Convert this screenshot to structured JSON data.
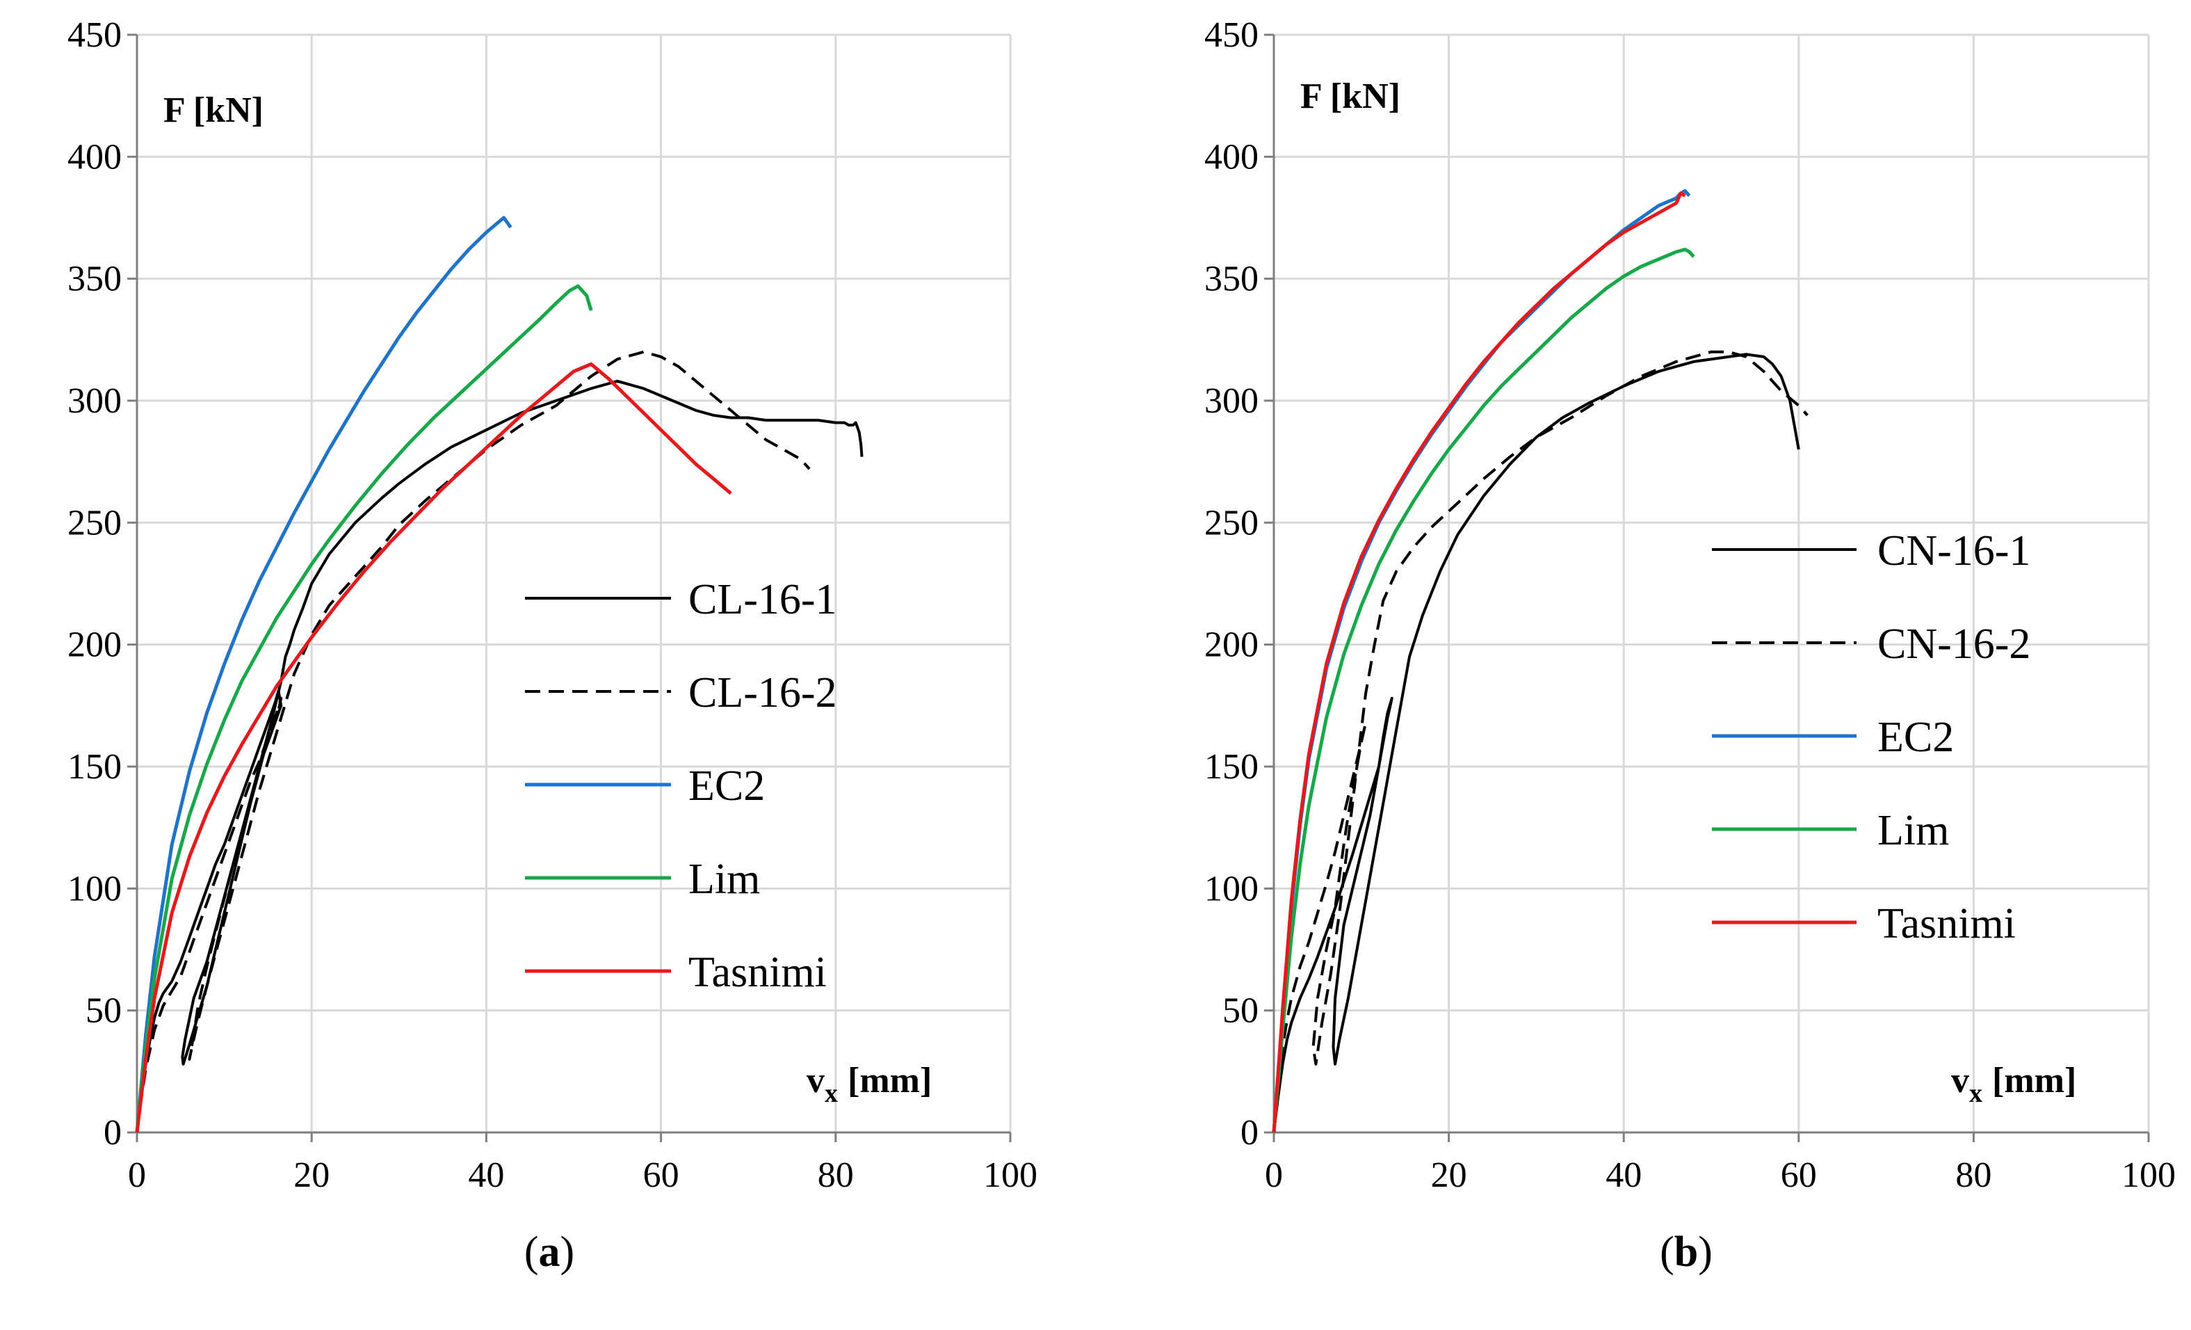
{
  "figure": {
    "colors": {
      "grid": "#d9d9d9",
      "axis": "#7f7f7f",
      "black": "#000000",
      "ec2": "#1f73c8",
      "lim": "#18a84a",
      "tasnimi": "#e41a1c"
    }
  },
  "chart_data": [
    {
      "type": "line",
      "panel_label": {
        "open": "(",
        "letter": "a",
        "close": ")"
      },
      "ylabel": "F [kN]",
      "xlabel_main": "v",
      "xlabel_sub": "x",
      "xlabel_unit": "[mm]",
      "xlim": [
        0,
        100
      ],
      "ylim": [
        0,
        450
      ],
      "xticks": [
        0,
        20,
        40,
        60,
        80,
        100
      ],
      "yticks": [
        0,
        50,
        100,
        150,
        200,
        250,
        300,
        350,
        400,
        450
      ],
      "grid": true,
      "legend_position": "center-right",
      "series": [
        {
          "name": "CL-16-1",
          "color": "#000000",
          "dash": "solid",
          "x": [
            0,
            0.5,
            1,
            1.5,
            2,
            2.5,
            3,
            4,
            5,
            6,
            7,
            8,
            9,
            10,
            11,
            12,
            13,
            14,
            15,
            15.8,
            16.2,
            16.5,
            15.5,
            14.5,
            13,
            12,
            11,
            10,
            9,
            8,
            7,
            6,
            5.3,
            5.2,
            5.5,
            6.5,
            8,
            9.5,
            11,
            12.5,
            14,
            15.5,
            16.5,
            17,
            17.5,
            18,
            19,
            20,
            22,
            25,
            28,
            30,
            33,
            36,
            40,
            44,
            48,
            52,
            55,
            58,
            60,
            62,
            64,
            66,
            68,
            70,
            72,
            74,
            76,
            78,
            80,
            81,
            81.5,
            82,
            82.3,
            82.5,
            82.7,
            82.9,
            83
          ],
          "y": [
            0,
            15,
            28,
            38,
            47,
            53,
            57,
            62,
            70,
            80,
            90,
            100,
            110,
            118,
            128,
            138,
            148,
            158,
            168,
            176,
            181,
            175,
            165,
            155,
            135,
            120,
            105,
            90,
            75,
            60,
            48,
            36,
            28,
            31,
            38,
            55,
            70,
            90,
            110,
            130,
            150,
            170,
            185,
            195,
            200,
            206,
            215,
            225,
            237,
            250,
            260,
            266,
            274,
            281,
            288,
            295,
            300,
            305,
            308,
            305,
            302,
            299,
            296,
            294,
            293,
            293,
            292,
            292,
            292,
            292,
            291,
            291,
            290,
            290,
            291,
            289,
            287,
            282,
            277
          ],
          "note": "approximate digitization of experimental hysteresis curve"
        },
        {
          "name": "CL-16-2",
          "color": "#000000",
          "dash": "dashed",
          "x": [
            0,
            0.5,
            1,
            2,
            3,
            4,
            5,
            6,
            7,
            8,
            9,
            10,
            11,
            12,
            13,
            14,
            15,
            16,
            16.5,
            16,
            15,
            14,
            13,
            12,
            11,
            10,
            9,
            8,
            7,
            6.5,
            6,
            6.3,
            7,
            8,
            9.5,
            11,
            12.5,
            14,
            15.5,
            17,
            18,
            19,
            20,
            22,
            25,
            28,
            30,
            33,
            36,
            40,
            44,
            48,
            52,
            55,
            58,
            60,
            62,
            64,
            66,
            68,
            70,
            72,
            74,
            75,
            76,
            76.5,
            77
          ],
          "y": [
            0,
            14,
            26,
            42,
            52,
            58,
            64,
            74,
            84,
            94,
            104,
            114,
            124,
            134,
            144,
            152,
            162,
            170,
            178,
            172,
            162,
            150,
            136,
            122,
            110,
            96,
            82,
            68,
            52,
            40,
            30,
            35,
            46,
            60,
            80,
            100,
            120,
            140,
            158,
            176,
            188,
            196,
            204,
            216,
            228,
            240,
            249,
            259,
            268,
            280,
            290,
            298,
            310,
            317,
            320,
            318,
            314,
            308,
            302,
            296,
            290,
            284,
            280,
            278,
            276,
            274,
            272
          ]
        },
        {
          "name": "EC2",
          "color": "#1f73c8",
          "dash": "solid",
          "x": [
            0,
            1,
            2,
            4,
            6,
            8,
            10,
            12,
            14,
            16,
            18,
            20,
            22,
            24,
            26,
            28,
            30,
            32,
            34,
            36,
            38,
            40,
            41,
            42,
            42.8
          ],
          "y": [
            0,
            40,
            72,
            118,
            148,
            172,
            192,
            210,
            226,
            240,
            254,
            267,
            280,
            292,
            304,
            315,
            326,
            336,
            345,
            354,
            362,
            369,
            372,
            375,
            371
          ]
        },
        {
          "name": "Lim",
          "color": "#18a84a",
          "dash": "solid",
          "x": [
            0,
            1,
            2,
            4,
            6,
            8,
            10,
            12,
            14,
            16,
            18,
            20,
            22,
            25,
            28,
            31,
            34,
            37,
            40,
            43,
            46,
            48,
            49.5,
            50.5,
            51.5,
            52
          ],
          "y": [
            0,
            35,
            63,
            104,
            130,
            151,
            169,
            185,
            198,
            211,
            222,
            233,
            243,
            257,
            270,
            282,
            293,
            303,
            313,
            323,
            333,
            340,
            345,
            347,
            343,
            337
          ]
        },
        {
          "name": "Tasnimi",
          "color": "#e41a1c",
          "dash": "solid",
          "x": [
            0,
            1,
            2,
            4,
            6,
            8,
            10,
            12,
            14,
            16,
            18,
            20,
            23,
            26,
            29,
            32,
            35,
            38,
            41,
            44,
            47,
            50,
            52,
            54,
            56,
            58,
            60,
            62,
            64,
            66,
            68
          ],
          "y": [
            0,
            30,
            55,
            90,
            113,
            131,
            146,
            159,
            171,
            183,
            193,
            203,
            217,
            230,
            242,
            253,
            264,
            274,
            284,
            294,
            303,
            312,
            315,
            309,
            302,
            295,
            288,
            281,
            274,
            268,
            262
          ]
        }
      ]
    },
    {
      "type": "line",
      "panel_label": {
        "open": "(",
        "letter": "b",
        "close": ")"
      },
      "ylabel": "F [kN]",
      "xlabel_main": "v",
      "xlabel_sub": "x",
      "xlabel_unit": "[mm]",
      "xlim": [
        0,
        100
      ],
      "ylim": [
        0,
        450
      ],
      "xticks": [
        0,
        20,
        40,
        60,
        80,
        100
      ],
      "yticks": [
        0,
        50,
        100,
        150,
        200,
        250,
        300,
        350,
        400,
        450
      ],
      "grid": true,
      "legend_position": "center-right",
      "series": [
        {
          "name": "CN-16-1",
          "color": "#000000",
          "dash": "solid",
          "x": [
            0,
            0.5,
            1,
            1.5,
            2,
            3,
            4,
            5,
            6,
            7,
            8,
            9,
            10,
            11,
            12,
            12.5,
            13,
            13.5,
            13,
            12.5,
            12,
            11.5,
            11,
            10,
            9,
            8,
            7.5,
            7,
            6.8,
            7,
            7.5,
            8.5,
            9.5,
            10.5,
            11.5,
            12.5,
            13.5,
            14.5,
            15.5,
            17,
            19,
            21,
            24,
            27,
            30,
            33,
            36,
            40,
            44,
            48,
            52,
            54,
            56,
            57,
            58,
            59,
            59.5,
            60
          ],
          "y": [
            0,
            15,
            28,
            38,
            45,
            55,
            63,
            72,
            82,
            92,
            103,
            114,
            126,
            138,
            150,
            162,
            172,
            178,
            170,
            160,
            150,
            140,
            130,
            115,
            100,
            85,
            70,
            55,
            35,
            28,
            38,
            55,
            75,
            95,
            115,
            135,
            155,
            175,
            195,
            212,
            230,
            245,
            261,
            274,
            285,
            293,
            299,
            306,
            312,
            316,
            318,
            319,
            318,
            315,
            310,
            300,
            290,
            280
          ]
        },
        {
          "name": "CN-16-2",
          "color": "#000000",
          "dash": "dashed",
          "x": [
            0,
            0.5,
            1,
            1.5,
            2,
            3,
            4,
            5,
            6,
            7,
            8,
            9,
            10,
            10.5,
            10,
            9.5,
            9,
            8.5,
            8,
            7.5,
            7,
            6,
            5,
            4.5,
            4.8,
            5.5,
            6.5,
            7.5,
            8.5,
            9.5,
            10.5,
            11.5,
            12.5,
            14,
            16,
            18,
            21,
            24,
            27,
            30,
            34,
            38,
            42,
            46,
            50,
            52,
            54,
            56,
            58,
            60,
            61
          ],
          "y": [
            0,
            20,
            35,
            46,
            55,
            68,
            78,
            90,
            102,
            115,
            130,
            145,
            160,
            168,
            160,
            150,
            140,
            130,
            118,
            105,
            92,
            75,
            55,
            35,
            28,
            45,
            65,
            90,
            120,
            150,
            180,
            200,
            218,
            230,
            240,
            248,
            258,
            268,
            277,
            285,
            293,
            302,
            310,
            316,
            320,
            320,
            318,
            312,
            304,
            298,
            294
          ]
        },
        {
          "name": "EC2",
          "color": "#1f73c8",
          "dash": "solid",
          "x": [
            0,
            1,
            2,
            3,
            4,
            6,
            8,
            10,
            12,
            14,
            16,
            18,
            20,
            22,
            24,
            26,
            28,
            30,
            32,
            34,
            36,
            38,
            40,
            42,
            44,
            46,
            46.5,
            47,
            47.5
          ],
          "y": [
            0,
            48,
            92,
            126,
            153,
            190,
            215,
            234,
            250,
            263,
            275,
            286,
            296,
            306,
            315,
            324,
            331,
            338,
            345,
            352,
            358,
            364,
            370,
            375,
            380,
            383,
            385,
            386,
            384
          ]
        },
        {
          "name": "Lim",
          "color": "#18a84a",
          "dash": "solid",
          "x": [
            0,
            1,
            2,
            3,
            4,
            6,
            8,
            10,
            12,
            14,
            16,
            18,
            20,
            22,
            24,
            26,
            28,
            30,
            32,
            34,
            36,
            38,
            40,
            42,
            44,
            46,
            47,
            47.5,
            48
          ],
          "y": [
            0,
            42,
            80,
            110,
            134,
            170,
            196,
            216,
            233,
            247,
            259,
            270,
            280,
            289,
            298,
            306,
            313,
            320,
            327,
            334,
            340,
            346,
            351,
            355,
            358,
            361,
            362,
            361,
            359
          ]
        },
        {
          "name": "Tasnimi",
          "color": "#e41a1c",
          "dash": "solid",
          "x": [
            0,
            1,
            2,
            3,
            4,
            6,
            8,
            10,
            12,
            14,
            16,
            18,
            20,
            22,
            24,
            26,
            28,
            30,
            32,
            34,
            36,
            38,
            40,
            42,
            44,
            46,
            46.5,
            47
          ],
          "y": [
            0,
            50,
            95,
            128,
            155,
            192,
            217,
            236,
            251,
            264,
            276,
            287,
            297,
            307,
            316,
            324,
            332,
            339,
            346,
            352,
            358,
            364,
            369,
            373,
            377,
            381,
            385,
            384
          ]
        }
      ]
    }
  ]
}
